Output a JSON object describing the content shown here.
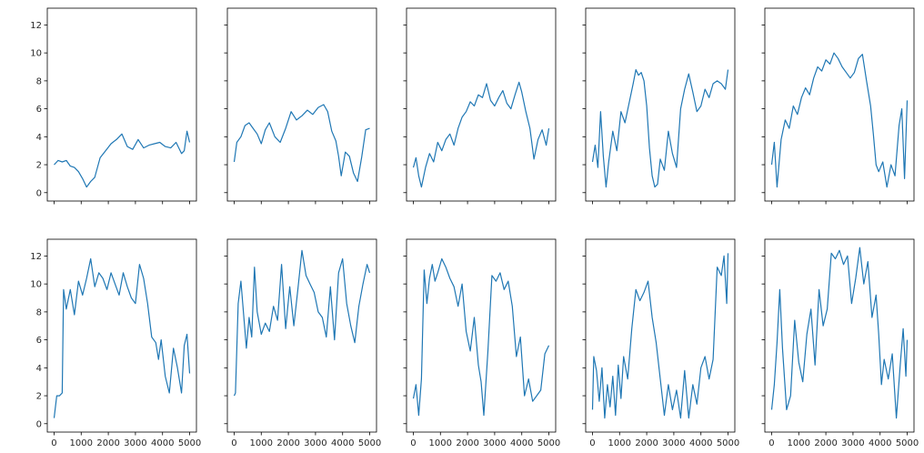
{
  "chart_data": {
    "type": "line",
    "layout": {
      "rows": 2,
      "cols": 5,
      "sharex": true,
      "sharey": true
    },
    "xlim": [
      -250,
      5250
    ],
    "ylim": [
      -0.6,
      13.2
    ],
    "xticks": [
      0,
      1000,
      2000,
      3000,
      4000,
      5000
    ],
    "xtick_labels": [
      "0",
      "1000",
      "2000",
      "3000",
      "4000",
      "5000"
    ],
    "yticks": [
      0,
      2,
      4,
      6,
      8,
      10,
      12
    ],
    "ytick_labels": [
      "0",
      "2",
      "4",
      "6",
      "8",
      "10",
      "12"
    ],
    "series_color": "#1f77b4",
    "grid": false,
    "panels": [
      {
        "x": [
          0,
          150,
          300,
          450,
          600,
          750,
          900,
          1050,
          1200,
          1350,
          1500,
          1700,
          1900,
          2100,
          2300,
          2500,
          2700,
          2900,
          3100,
          3300,
          3500,
          3700,
          3900,
          4100,
          4300,
          4500,
          4600,
          4700,
          4800,
          4900,
          5000
        ],
        "y": [
          2.0,
          2.3,
          2.2,
          2.3,
          1.9,
          1.8,
          1.5,
          1.0,
          0.4,
          0.8,
          1.1,
          2.5,
          3.0,
          3.5,
          3.8,
          4.2,
          3.3,
          3.1,
          3.8,
          3.2,
          3.4,
          3.5,
          3.6,
          3.3,
          3.2,
          3.6,
          3.2,
          2.8,
          3.0,
          4.4,
          3.6
        ]
      },
      {
        "x": [
          0,
          100,
          250,
          400,
          550,
          700,
          850,
          1000,
          1150,
          1300,
          1500,
          1700,
          1900,
          2100,
          2300,
          2500,
          2700,
          2900,
          3100,
          3300,
          3450,
          3600,
          3750,
          3850,
          3950,
          4100,
          4250,
          4400,
          4550,
          4700,
          4850,
          5000
        ],
        "y": [
          2.2,
          3.6,
          4.0,
          4.8,
          5.0,
          4.6,
          4.2,
          3.5,
          4.5,
          5.0,
          4.0,
          3.6,
          4.6,
          5.8,
          5.2,
          5.5,
          5.9,
          5.6,
          6.1,
          6.3,
          5.8,
          4.4,
          3.7,
          2.6,
          1.2,
          2.9,
          2.6,
          1.4,
          0.8,
          2.5,
          4.5,
          4.6
        ]
      },
      {
        "x": [
          0,
          100,
          200,
          300,
          450,
          600,
          750,
          900,
          1050,
          1200,
          1350,
          1500,
          1650,
          1800,
          1950,
          2100,
          2250,
          2400,
          2550,
          2700,
          2850,
          3000,
          3150,
          3300,
          3450,
          3600,
          3750,
          3900,
          4000,
          4150,
          4300,
          4450,
          4600,
          4750,
          4900,
          5000
        ],
        "y": [
          1.8,
          2.5,
          1.2,
          0.4,
          1.8,
          2.8,
          2.2,
          3.6,
          3.0,
          3.8,
          4.2,
          3.4,
          4.6,
          5.4,
          5.8,
          6.5,
          6.2,
          7.0,
          6.8,
          7.8,
          6.6,
          6.2,
          6.8,
          7.3,
          6.4,
          6.0,
          7.0,
          7.9,
          7.2,
          5.8,
          4.6,
          2.4,
          3.8,
          4.5,
          3.4,
          4.6
        ]
      },
      {
        "x": [
          0,
          100,
          200,
          300,
          400,
          500,
          600,
          750,
          900,
          1050,
          1200,
          1350,
          1500,
          1600,
          1700,
          1800,
          1900,
          2000,
          2100,
          2200,
          2300,
          2400,
          2500,
          2650,
          2800,
          2950,
          3100,
          3250,
          3400,
          3550,
          3700,
          3850,
          4000,
          4150,
          4300,
          4450,
          4600,
          4750,
          4900,
          5000
        ],
        "y": [
          2.2,
          3.4,
          1.8,
          5.8,
          2.6,
          0.4,
          2.2,
          4.4,
          3.0,
          5.8,
          5.0,
          6.4,
          7.8,
          8.8,
          8.4,
          8.6,
          8.0,
          6.2,
          3.2,
          1.2,
          0.4,
          0.6,
          2.4,
          1.6,
          4.4,
          2.8,
          1.8,
          6.0,
          7.4,
          8.5,
          7.2,
          5.8,
          6.2,
          7.4,
          6.8,
          7.8,
          8.0,
          7.8,
          7.4,
          8.8
        ]
      },
      {
        "x": [
          0,
          100,
          200,
          350,
          500,
          650,
          800,
          950,
          1100,
          1250,
          1400,
          1550,
          1700,
          1850,
          2000,
          2150,
          2300,
          2450,
          2600,
          2750,
          2900,
          3050,
          3200,
          3350,
          3500,
          3650,
          3750,
          3850,
          3950,
          4100,
          4250,
          4400,
          4550,
          4700,
          4800,
          4900,
          5000
        ],
        "y": [
          2.0,
          3.6,
          0.4,
          3.8,
          5.2,
          4.6,
          6.2,
          5.6,
          6.8,
          7.5,
          7.0,
          8.2,
          9.0,
          8.7,
          9.5,
          9.2,
          10.0,
          9.6,
          9.0,
          8.6,
          8.2,
          8.6,
          9.6,
          9.9,
          8.0,
          6.2,
          4.2,
          2.0,
          1.5,
          2.2,
          0.4,
          2.0,
          1.2,
          4.8,
          6.0,
          1.0,
          6.6
        ]
      },
      {
        "x": [
          0,
          100,
          200,
          300,
          350,
          450,
          600,
          750,
          900,
          1050,
          1200,
          1350,
          1500,
          1650,
          1800,
          1950,
          2100,
          2250,
          2400,
          2550,
          2700,
          2850,
          3000,
          3150,
          3300,
          3450,
          3600,
          3750,
          3850,
          3950,
          4100,
          4250,
          4400,
          4550,
          4700,
          4800,
          4900,
          5000
        ],
        "y": [
          0.4,
          2.0,
          2.0,
          2.2,
          9.6,
          8.2,
          9.6,
          7.8,
          10.2,
          9.2,
          10.4,
          11.8,
          9.8,
          10.8,
          10.4,
          9.6,
          10.8,
          10.0,
          9.2,
          10.8,
          9.8,
          9.0,
          8.6,
          11.4,
          10.4,
          8.6,
          6.2,
          5.8,
          4.6,
          6.0,
          3.4,
          2.2,
          5.4,
          4.0,
          2.2,
          5.6,
          6.4,
          3.6
        ]
      },
      {
        "x": [
          0,
          50,
          150,
          250,
          350,
          450,
          550,
          650,
          750,
          850,
          1000,
          1150,
          1300,
          1450,
          1600,
          1750,
          1900,
          2050,
          2200,
          2350,
          2500,
          2650,
          2800,
          2950,
          3100,
          3250,
          3400,
          3550,
          3700,
          3850,
          4000,
          4150,
          4300,
          4450,
          4600,
          4750,
          4900,
          5000
        ],
        "y": [
          2.0,
          2.2,
          8.6,
          10.2,
          7.8,
          5.4,
          7.6,
          6.2,
          11.2,
          8.0,
          6.4,
          7.2,
          6.6,
          8.4,
          7.4,
          11.4,
          6.8,
          9.8,
          7.0,
          9.6,
          12.4,
          10.6,
          10.0,
          9.4,
          8.0,
          7.6,
          6.2,
          9.8,
          6.0,
          10.8,
          11.8,
          8.6,
          7.0,
          5.8,
          8.4,
          10.0,
          11.4,
          10.8
        ]
      },
      {
        "x": [
          0,
          100,
          200,
          300,
          400,
          500,
          600,
          700,
          800,
          900,
          1050,
          1200,
          1350,
          1500,
          1650,
          1800,
          1950,
          2100,
          2250,
          2400,
          2500,
          2600,
          2750,
          2900,
          3050,
          3200,
          3350,
          3500,
          3650,
          3800,
          3950,
          4100,
          4250,
          4400,
          4550,
          4700,
          4850,
          5000
        ],
        "y": [
          1.8,
          2.8,
          0.6,
          3.2,
          11.0,
          8.6,
          10.4,
          11.4,
          10.2,
          10.8,
          11.8,
          11.2,
          10.4,
          9.8,
          8.4,
          10.0,
          6.6,
          5.2,
          7.6,
          4.2,
          3.0,
          0.6,
          5.2,
          10.6,
          10.2,
          10.8,
          9.6,
          10.2,
          8.4,
          4.8,
          6.2,
          2.0,
          3.2,
          1.6,
          2.0,
          2.4,
          5.0,
          5.6
        ]
      },
      {
        "x": [
          0,
          50,
          150,
          250,
          350,
          450,
          550,
          650,
          750,
          850,
          950,
          1050,
          1150,
          1300,
          1450,
          1600,
          1750,
          1900,
          2050,
          2200,
          2350,
          2500,
          2650,
          2800,
          2950,
          3100,
          3250,
          3400,
          3550,
          3700,
          3850,
          4000,
          4150,
          4300,
          4450,
          4600,
          4750,
          4850,
          4950,
          5000
        ],
        "y": [
          1.0,
          4.8,
          3.8,
          1.6,
          4.0,
          0.4,
          2.8,
          1.2,
          3.4,
          0.6,
          4.2,
          1.8,
          4.8,
          3.2,
          6.8,
          9.6,
          8.8,
          9.4,
          10.2,
          7.6,
          5.8,
          3.2,
          0.6,
          2.8,
          1.0,
          2.4,
          0.4,
          3.8,
          0.4,
          2.8,
          1.4,
          4.0,
          4.8,
          3.2,
          4.6,
          11.2,
          10.6,
          12.0,
          8.6,
          12.2
        ]
      },
      {
        "x": [
          0,
          100,
          200,
          300,
          400,
          550,
          700,
          850,
          1000,
          1150,
          1300,
          1450,
          1600,
          1750,
          1900,
          2050,
          2200,
          2350,
          2500,
          2650,
          2800,
          2950,
          3100,
          3250,
          3400,
          3550,
          3700,
          3850,
          3950,
          4050,
          4150,
          4300,
          4450,
          4600,
          4750,
          4850,
          4950,
          5000
        ],
        "y": [
          1.0,
          2.8,
          5.8,
          9.6,
          5.4,
          1.0,
          2.0,
          7.4,
          4.4,
          3.0,
          6.4,
          8.2,
          4.2,
          9.6,
          7.0,
          8.2,
          12.2,
          11.8,
          12.4,
          11.4,
          12.0,
          8.6,
          10.4,
          12.6,
          10.0,
          11.6,
          7.6,
          9.2,
          6.4,
          2.8,
          4.6,
          3.2,
          5.0,
          0.4,
          4.4,
          6.8,
          3.4,
          6.0
        ]
      }
    ]
  }
}
